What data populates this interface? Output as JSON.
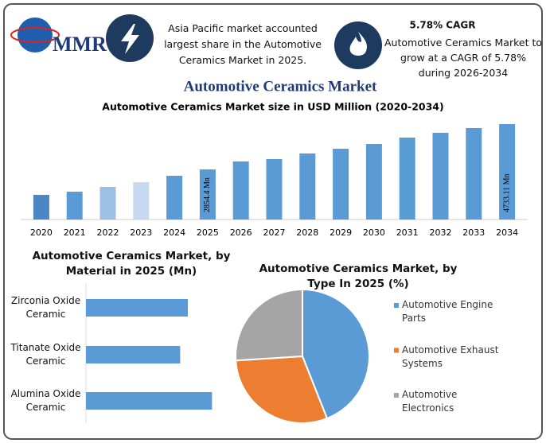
{
  "header": {
    "logo": "MMR",
    "info_left": "Asia Pacific market accounted largest share in the Automotive Ceramics Market in 2025.",
    "cagr_title": "5.78% CAGR",
    "info_right": "Automotive Ceramics Market to grow at a CAGR of 5.78% during 2026-2034"
  },
  "title": "Automotive Ceramics Market",
  "chart_data": [
    {
      "type": "bar",
      "title": "Automotive Ceramics Market size in USD Million (2020-2034)",
      "categories": [
        "2020",
        "2021",
        "2022",
        "2023",
        "2024",
        "2025",
        "2026",
        "2027",
        "2028",
        "2029",
        "2030",
        "2031",
        "2032",
        "2033",
        "2034"
      ],
      "values": [
        1800,
        1932,
        2130,
        2327,
        2591,
        2854.4,
        3184,
        3283,
        3514,
        3711,
        3909,
        4173,
        4371,
        4568,
        4733.11
      ],
      "value_labels": [
        null,
        null,
        null,
        null,
        null,
        "2854.4 Mn",
        null,
        null,
        null,
        null,
        null,
        null,
        null,
        null,
        "4733.11 Mn"
      ],
      "colors": [
        "#4a86c4",
        "#5b9bd5",
        "#9dbfe6",
        "#c6d9f1",
        "#5b9bd5",
        "#5b9bd5",
        "#5b9bd5",
        "#5b9bd5",
        "#5b9bd5",
        "#5b9bd5",
        "#5b9bd5",
        "#5b9bd5",
        "#5b9bd5",
        "#5b9bd5",
        "#5b9bd5"
      ],
      "ylim": [
        780,
        4930
      ]
    },
    {
      "type": "hbar",
      "title": "Automotive Ceramics Market, by Material in 2025 (Mn)",
      "categories": [
        "Zirconia Oxide Ceramic",
        "Titanate Oxide Ceramic",
        "Alumina Oxide Ceramic"
      ],
      "values": [
        800,
        740,
        990
      ],
      "color": "#5b9bd5",
      "xlim": [
        0,
        1000
      ]
    },
    {
      "type": "pie",
      "title": "Automotive Ceramics Market, by Type In 2025 (%)",
      "categories": [
        "Automotive Engine Parts",
        "Automotive Exhaust Systems",
        "Automotive Electronics"
      ],
      "values": [
        44,
        30,
        26
      ],
      "colors": [
        "#5b9bd5",
        "#ed7d31",
        "#a5a5a5"
      ],
      "legend": "right"
    }
  ]
}
